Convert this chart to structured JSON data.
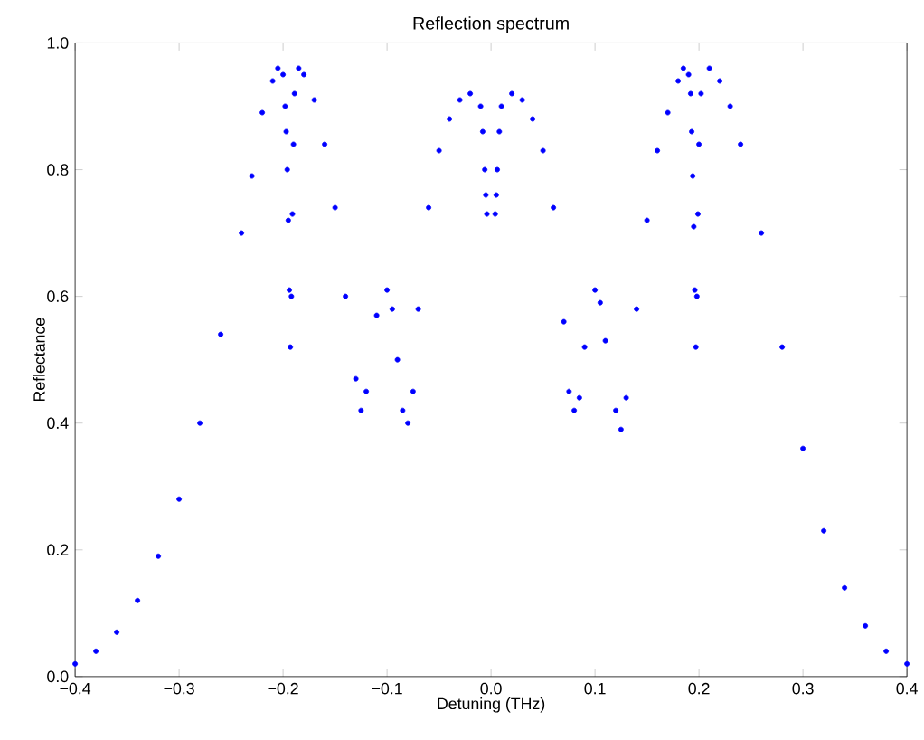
{
  "chart_data": {
    "type": "scatter",
    "title": "Reflection spectrum",
    "xlabel": "Detuning (THz)",
    "ylabel": "Reflectance",
    "marker": "circle",
    "grid": false,
    "xlim": [
      -0.4,
      0.4
    ],
    "ylim": [
      0,
      1
    ],
    "xticks": [
      {
        "value": -0.4,
        "label": "−0.4"
      },
      {
        "value": -0.3,
        "label": "−0.3"
      },
      {
        "value": -0.2,
        "label": "−0.2"
      },
      {
        "value": -0.1,
        "label": "−0.1"
      },
      {
        "value": 0,
        "label": "0.0"
      },
      {
        "value": 0.1,
        "label": "0.1"
      },
      {
        "value": 0.2,
        "label": "0.2"
      },
      {
        "value": 0.3,
        "label": "0.3"
      },
      {
        "value": 0.4,
        "label": "0.4"
      }
    ],
    "yticks": [
      {
        "value": 0,
        "label": "0.0"
      },
      {
        "value": 0.2,
        "label": "0.2"
      },
      {
        "value": 0.4,
        "label": "0.4"
      },
      {
        "value": 0.6,
        "label": "0.6"
      },
      {
        "value": 0.8,
        "label": "0.8"
      },
      {
        "value": 1,
        "label": "1.0"
      }
    ],
    "series": [
      {
        "color": "#0000ff",
        "x": [
          -0.4,
          -0.38,
          -0.36,
          -0.34,
          -0.32,
          -0.3,
          -0.28,
          -0.26,
          -0.24,
          -0.23,
          -0.22,
          -0.21,
          -0.205,
          -0.2,
          -0.198,
          -0.197,
          -0.196,
          -0.195,
          -0.194,
          -0.193,
          -0.192,
          -0.191,
          -0.19,
          -0.189,
          -0.185,
          -0.18,
          -0.17,
          -0.16,
          -0.15,
          -0.14,
          -0.13,
          -0.125,
          -0.12,
          -0.11,
          -0.1,
          -0.095,
          -0.09,
          -0.085,
          -0.08,
          -0.075,
          -0.07,
          -0.06,
          -0.05,
          -0.04,
          -0.03,
          -0.02,
          -0.01,
          -0.008,
          -0.006,
          -0.005,
          -0.004,
          0.004,
          0.005,
          0.006,
          0.008,
          0.01,
          0.02,
          0.03,
          0.04,
          0.05,
          0.06,
          0.07,
          0.075,
          0.08,
          0.085,
          0.09,
          0.1,
          0.105,
          0.11,
          0.12,
          0.125,
          0.13,
          0.14,
          0.15,
          0.16,
          0.17,
          0.18,
          0.185,
          0.19,
          0.192,
          0.193,
          0.194,
          0.195,
          0.196,
          0.197,
          0.198,
          0.199,
          0.2,
          0.202,
          0.21,
          0.22,
          0.23,
          0.24,
          0.26,
          0.28,
          0.3,
          0.32,
          0.34,
          0.36,
          0.38,
          0.4
        ],
        "values": [
          0.02,
          0.04,
          0.07,
          0.12,
          0.19,
          0.28,
          0.4,
          0.54,
          0.7,
          0.79,
          0.89,
          0.94,
          0.96,
          0.95,
          0.9,
          0.86,
          0.8,
          0.72,
          0.61,
          0.52,
          0.6,
          0.73,
          0.84,
          0.92,
          0.96,
          0.95,
          0.91,
          0.84,
          0.74,
          0.6,
          0.47,
          0.42,
          0.45,
          0.57,
          0.61,
          0.58,
          0.5,
          0.42,
          0.4,
          0.45,
          0.58,
          0.74,
          0.83,
          0.88,
          0.91,
          0.92,
          0.9,
          0.86,
          0.8,
          0.76,
          0.73,
          0.73,
          0.76,
          0.8,
          0.86,
          0.9,
          0.92,
          0.91,
          0.88,
          0.83,
          0.74,
          0.56,
          0.45,
          0.42,
          0.44,
          0.52,
          0.61,
          0.59,
          0.53,
          0.42,
          0.39,
          0.44,
          0.58,
          0.72,
          0.83,
          0.89,
          0.94,
          0.96,
          0.95,
          0.92,
          0.86,
          0.79,
          0.71,
          0.61,
          0.52,
          0.6,
          0.73,
          0.84,
          0.92,
          0.96,
          0.94,
          0.9,
          0.84,
          0.7,
          0.52,
          0.36,
          0.23,
          0.14,
          0.08,
          0.04,
          0.02
        ]
      }
    ]
  }
}
